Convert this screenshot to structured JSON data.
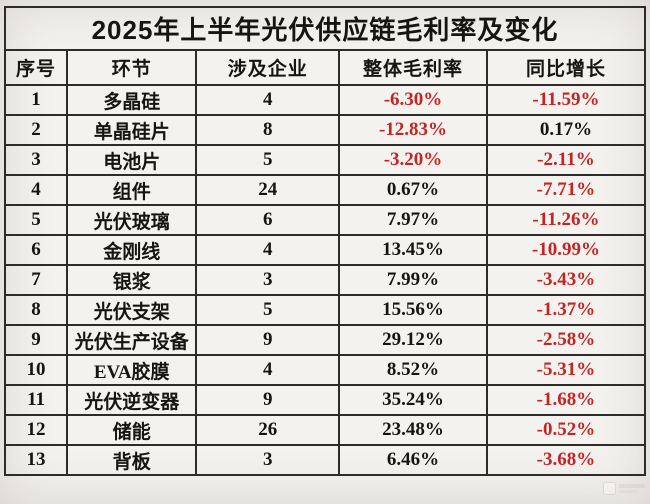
{
  "title": "2025年上半年光伏供应链毛利率及变化",
  "colors": {
    "negative": "#c42424",
    "positive": "#171513",
    "border": "#2e2c2a",
    "background": "#f4f2ef"
  },
  "chart_data": {
    "type": "table",
    "title": "2025年上半年光伏供应链毛利率及变化",
    "columns": [
      "序号",
      "环节",
      "涉及企业",
      "整体毛利率",
      "同比增长"
    ],
    "rows": [
      [
        "1",
        "多晶硅",
        "4",
        "-6.30%",
        "-11.59%"
      ],
      [
        "2",
        "单晶硅片",
        "8",
        "-12.83%",
        "0.17%"
      ],
      [
        "3",
        "电池片",
        "5",
        "-3.20%",
        "-2.11%"
      ],
      [
        "4",
        "组件",
        "24",
        "0.67%",
        "-7.71%"
      ],
      [
        "5",
        "光伏玻璃",
        "6",
        "7.97%",
        "-11.26%"
      ],
      [
        "6",
        "金刚线",
        "4",
        "13.45%",
        "-10.99%"
      ],
      [
        "7",
        "银浆",
        "3",
        "7.99%",
        "-3.43%"
      ],
      [
        "8",
        "光伏支架",
        "5",
        "15.56%",
        "-1.37%"
      ],
      [
        "9",
        "光伏生产设备",
        "9",
        "29.12%",
        "-2.58%"
      ],
      [
        "10",
        "EVA胶膜",
        "4",
        "8.52%",
        "-5.31%"
      ],
      [
        "11",
        "光伏逆变器",
        "9",
        "35.24%",
        "-1.68%"
      ],
      [
        "12",
        "储能",
        "26",
        "23.48%",
        "-0.52%"
      ],
      [
        "13",
        "背板",
        "3",
        "6.46%",
        "-3.68%"
      ]
    ]
  }
}
